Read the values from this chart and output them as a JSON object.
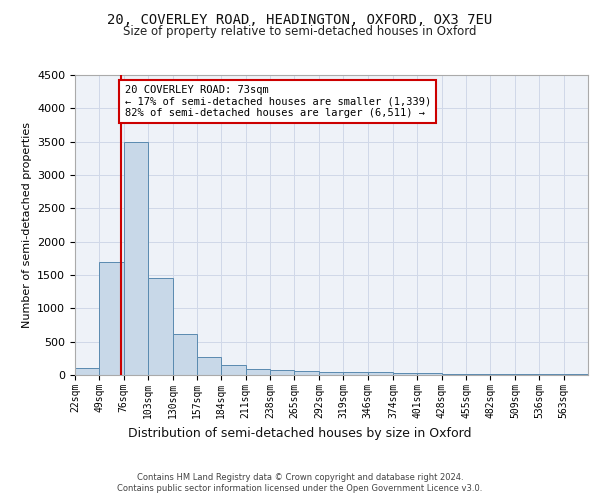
{
  "title_line1": "20, COVERLEY ROAD, HEADINGTON, OXFORD, OX3 7EU",
  "title_line2": "Size of property relative to semi-detached houses in Oxford",
  "xlabel": "Distribution of semi-detached houses by size in Oxford",
  "ylabel": "Number of semi-detached properties",
  "footer1": "Contains HM Land Registry data © Crown copyright and database right 2024.",
  "footer2": "Contains public sector information licensed under the Open Government Licence v3.0.",
  "property_size": 73,
  "property_label": "20 COVERLEY ROAD: 73sqm",
  "pct_smaller": 17,
  "count_smaller": "1,339",
  "pct_larger": 82,
  "count_larger": "6,511",
  "bin_labels": [
    "22sqm",
    "49sqm",
    "76sqm",
    "103sqm",
    "130sqm",
    "157sqm",
    "184sqm",
    "211sqm",
    "238sqm",
    "265sqm",
    "292sqm",
    "319sqm",
    "346sqm",
    "374sqm",
    "401sqm",
    "428sqm",
    "455sqm",
    "482sqm",
    "509sqm",
    "536sqm",
    "563sqm"
  ],
  "bin_edges": [
    22,
    49,
    76,
    103,
    130,
    157,
    184,
    211,
    238,
    265,
    292,
    319,
    346,
    374,
    401,
    428,
    455,
    482,
    509,
    536,
    563,
    590
  ],
  "bar_values": [
    110,
    1700,
    3500,
    1450,
    620,
    270,
    150,
    95,
    75,
    62,
    52,
    43,
    38,
    32,
    25,
    20,
    17,
    14,
    12,
    10,
    8
  ],
  "bar_color": "#c8d8e8",
  "bar_edge_color": "#5a8ab0",
  "grid_color": "#d0d8e8",
  "bg_color": "#eef2f8",
  "fig_color": "#ffffff",
  "redline_color": "#cc0000",
  "annotation_box_color": "#ffffff",
  "annotation_border_color": "#cc0000",
  "ylim": [
    0,
    4500
  ],
  "yticks": [
    0,
    500,
    1000,
    1500,
    2000,
    2500,
    3000,
    3500,
    4000,
    4500
  ]
}
